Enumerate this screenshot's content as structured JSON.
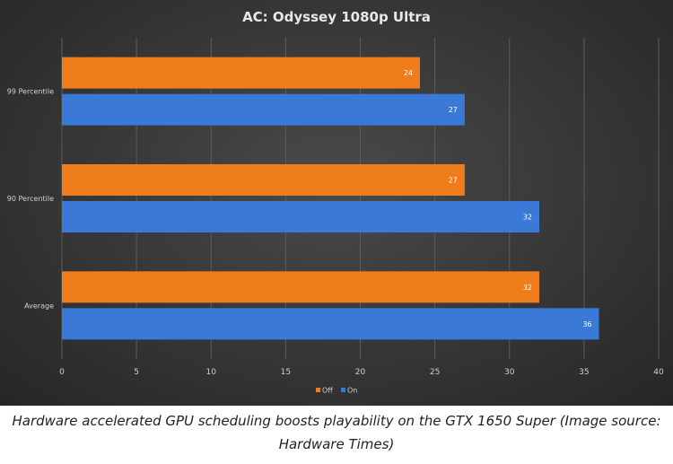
{
  "chart_data": {
    "type": "bar",
    "orientation": "horizontal",
    "title": "AC: Odyssey  1080p Ultra",
    "categories": [
      "99 Percentile",
      "90 Percentile",
      "Average"
    ],
    "series": [
      {
        "name": "Off",
        "color": "#f07d1c",
        "values": [
          24,
          27,
          32
        ]
      },
      {
        "name": "On",
        "color": "#3a7ad6",
        "values": [
          27,
          32,
          36
        ]
      }
    ],
    "xlim": [
      0,
      40
    ],
    "xticks": [
      0,
      5,
      10,
      15,
      20,
      25,
      30,
      35,
      40
    ],
    "grid": true,
    "legend": "bottom"
  },
  "caption": "Hardware accelerated GPU scheduling boosts playability on the GTX 1650 Super (Image source: Hardware Times)"
}
